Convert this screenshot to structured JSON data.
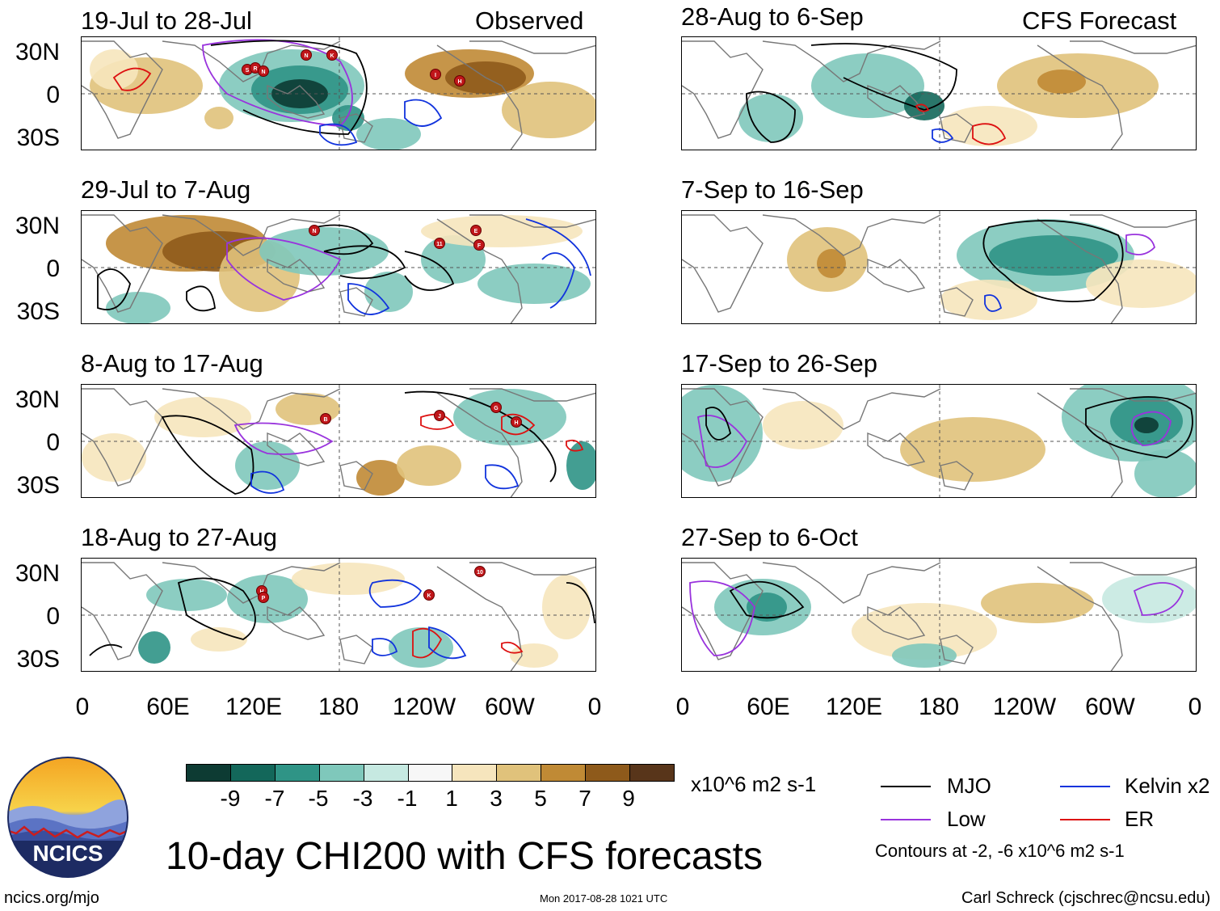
{
  "headers": {
    "observed": "Observed",
    "forecast": "CFS Forecast"
  },
  "lat_labels": [
    "30N",
    "0",
    "30S"
  ],
  "lon_labels": [
    "0",
    "60E",
    "120E",
    "180",
    "120W",
    "60W",
    "0"
  ],
  "panels": [
    {
      "title": "19-Jul to 28-Jul",
      "kind": "observed",
      "storms": [
        "N",
        "K",
        "S",
        "R",
        "N",
        "I",
        "H"
      ]
    },
    {
      "title": "29-Jul to 7-Aug",
      "kind": "observed",
      "storms": [
        "N",
        "E",
        "11",
        "F"
      ]
    },
    {
      "title": "8-Aug to 17-Aug",
      "kind": "observed",
      "storms": [
        "B",
        "J",
        "G",
        "H"
      ]
    },
    {
      "title": "18-Aug to 27-Aug",
      "kind": "observed",
      "storms": [
        "H",
        "P",
        "K",
        "10"
      ]
    },
    {
      "title": "28-Aug to 6-Sep",
      "kind": "forecast",
      "storms": []
    },
    {
      "title": "7-Sep to 16-Sep",
      "kind": "forecast",
      "storms": []
    },
    {
      "title": "17-Sep to 26-Sep",
      "kind": "forecast",
      "storms": []
    },
    {
      "title": "27-Sep to 6-Oct",
      "kind": "forecast",
      "storms": []
    }
  ],
  "colorbar": {
    "colors": [
      "#0d3b33",
      "#13675a",
      "#2f9486",
      "#7fc8bb",
      "#c6e9e1",
      "#f7f7f7",
      "#f6e5bd",
      "#e0c27b",
      "#c08a35",
      "#8e5a1b",
      "#58351a"
    ],
    "labels": [
      "-9",
      "-7",
      "-5",
      "-3",
      "-1",
      "1",
      "3",
      "5",
      "7",
      "9"
    ],
    "units": "x10^6 m2 s-1"
  },
  "legend": {
    "items": [
      {
        "label": "MJO",
        "color": "#000000"
      },
      {
        "label": "Kelvin x2",
        "color": "#1133dd"
      },
      {
        "label": "Low",
        "color": "#9933dd"
      },
      {
        "label": "ER",
        "color": "#dd1111"
      }
    ],
    "note": "Contours at -2, -6 x10^6 m2 s-1"
  },
  "main_title": "10-day CHI200 with CFS forecasts",
  "logo_text": "NCICS",
  "footer": {
    "url": "ncics.org/mjo",
    "timestamp": "Mon 2017-08-28 1021 UTC",
    "credit": "Carl Schreck (cjschrec@ncsu.edu)"
  }
}
